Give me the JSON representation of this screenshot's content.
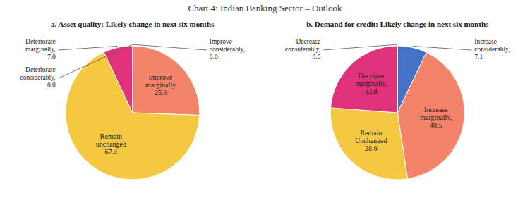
{
  "title": "Chart 4: Indian Banking Sector – Outlook",
  "chart_data": [
    {
      "type": "pie",
      "title": "a. Asset quality: Likely change in next six months",
      "categories": [
        "Improve considerably,",
        "Improve marginally",
        "Remain unchanged",
        "Deteriorate marginally,",
        "Deteriorate considerably,"
      ],
      "values": [
        0.001,
        25.6,
        67.4,
        7.0,
        0.001
      ],
      "value_labels": [
        "0.0",
        "25.6",
        "67.4",
        "7.0",
        "0.0"
      ],
      "colors": [
        "#f4a57a",
        "#f4836a",
        "#f5c842",
        "#e0327a",
        "#d4a0c8"
      ],
      "data_labels": true
    },
    {
      "type": "pie",
      "title": "b. Demand for credit: Likely change in next six months",
      "categories": [
        "Increase considerably,",
        "Increase marginally,",
        "Remain Unchanged",
        "Decrease marginally,",
        "Decrease considerably,"
      ],
      "values": [
        7.1,
        40.5,
        28.6,
        23.8,
        0.001
      ],
      "value_labels": [
        "7.1",
        "40.5",
        "28.6",
        "23.8",
        "0.0"
      ],
      "colors": [
        "#4472c4",
        "#f4836a",
        "#f5c842",
        "#e0327a",
        "#aaaaaa"
      ],
      "data_labels": true
    }
  ]
}
